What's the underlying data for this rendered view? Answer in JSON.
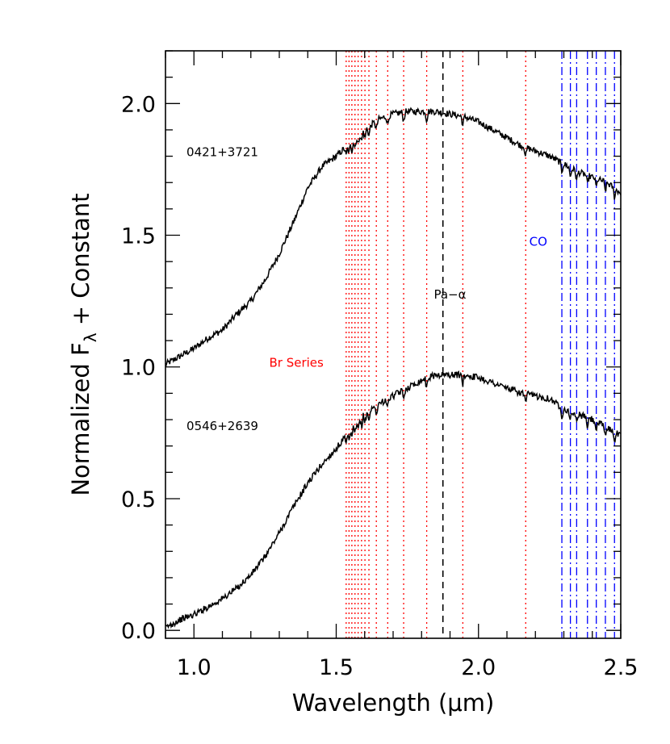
{
  "chart_data": {
    "type": "line",
    "xlabel": "Wavelength (μm)",
    "ylabel": "Normalized F",
    "ylabel_sub": "λ",
    "ylabel_tail": " + Constant",
    "xlim": [
      0.9,
      2.5
    ],
    "ylim": [
      -0.03,
      2.2
    ],
    "x_ticks": [
      {
        "value": 1.0,
        "label": "1.0"
      },
      {
        "value": 1.5,
        "label": "1.5"
      },
      {
        "value": 2.0,
        "label": "2.0"
      },
      {
        "value": 2.5,
        "label": "2.5"
      }
    ],
    "y_ticks": [
      {
        "value": 0.0,
        "label": "0.0"
      },
      {
        "value": 0.5,
        "label": "0.5"
      },
      {
        "value": 1.0,
        "label": "1.0"
      },
      {
        "value": 1.5,
        "label": "1.5"
      },
      {
        "value": 2.0,
        "label": "2.0"
      }
    ],
    "x_minor_step": 0.1,
    "y_minor_step": 0.1,
    "grid": false,
    "series": [
      {
        "name": "0421+3721",
        "color": "#000000",
        "x": [
          0.9,
          0.95,
          1.0,
          1.05,
          1.1,
          1.15,
          1.2,
          1.25,
          1.3,
          1.35,
          1.4,
          1.45,
          1.5,
          1.55,
          1.6,
          1.65,
          1.7,
          1.75,
          1.8,
          1.85,
          1.9,
          1.95,
          2.0,
          2.05,
          2.1,
          2.15,
          2.2,
          2.25,
          2.3,
          2.35,
          2.4,
          2.45,
          2.5
        ],
        "y": [
          1.01,
          1.04,
          1.07,
          1.11,
          1.14,
          1.2,
          1.25,
          1.33,
          1.43,
          1.55,
          1.68,
          1.76,
          1.8,
          1.85,
          1.9,
          1.94,
          1.96,
          1.97,
          1.97,
          1.97,
          1.96,
          1.95,
          1.93,
          1.9,
          1.87,
          1.84,
          1.82,
          1.8,
          1.77,
          1.74,
          1.72,
          1.7,
          1.66
        ]
      },
      {
        "name": "0546+2639",
        "color": "#000000",
        "x": [
          0.9,
          0.95,
          1.0,
          1.05,
          1.1,
          1.15,
          1.2,
          1.25,
          1.3,
          1.35,
          1.4,
          1.45,
          1.5,
          1.55,
          1.6,
          1.65,
          1.7,
          1.75,
          1.8,
          1.85,
          1.9,
          1.95,
          2.0,
          2.05,
          2.1,
          2.15,
          2.2,
          2.25,
          2.3,
          2.35,
          2.4,
          2.45,
          2.5
        ],
        "y": [
          0.01,
          0.04,
          0.06,
          0.09,
          0.12,
          0.16,
          0.21,
          0.28,
          0.37,
          0.47,
          0.56,
          0.63,
          0.69,
          0.76,
          0.82,
          0.86,
          0.89,
          0.92,
          0.95,
          0.97,
          0.97,
          0.97,
          0.96,
          0.94,
          0.92,
          0.9,
          0.89,
          0.88,
          0.84,
          0.82,
          0.8,
          0.77,
          0.74
        ]
      }
    ],
    "reference_lines": {
      "br_series": {
        "color": "#ff0000",
        "style": "dotted",
        "x": [
          1.535,
          1.545,
          1.555,
          1.566,
          1.577,
          1.589,
          1.601,
          1.615,
          1.641,
          1.681,
          1.737,
          1.818,
          1.945,
          2.166
        ]
      },
      "pa_alpha": {
        "color": "#000000",
        "style": "dashed",
        "x": [
          1.875
        ]
      },
      "co": {
        "color": "#0000ff",
        "style": "dash-dot",
        "x": [
          2.293,
          2.323,
          2.345,
          2.383,
          2.414,
          2.446,
          2.478
        ]
      }
    },
    "annotations": [
      {
        "text": "0421+3721",
        "x": 1.1,
        "y": 1.8,
        "color": "#000000"
      },
      {
        "text": "0546+2639",
        "x": 1.1,
        "y": 0.76,
        "color": "#000000"
      },
      {
        "text": "Br Series",
        "x": 1.36,
        "y": 1.0,
        "color": "#ff0000"
      },
      {
        "text": "Pa−α",
        "x": 1.9,
        "y": 1.26,
        "color": "#000000"
      },
      {
        "text": "CO",
        "x": 2.21,
        "y": 1.46,
        "color": "#0000ff"
      }
    ]
  }
}
